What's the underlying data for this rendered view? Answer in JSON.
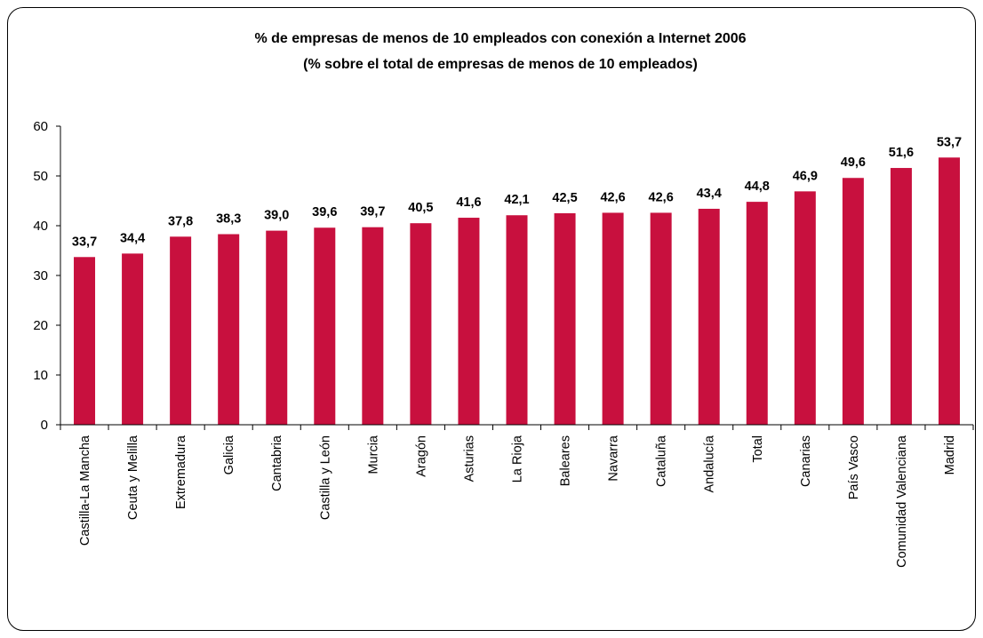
{
  "chart_data": {
    "type": "bar",
    "title": "% de empresas de menos de 10 empleados con conexión a Internet 2006",
    "subtitle": "(% sobre el total de empresas de menos de 10 empleados)",
    "categories": [
      "Castilla-La Mancha",
      "Ceuta y Melilla",
      "Extremadura",
      "Galicia",
      "Cantabria",
      "Castilla y León",
      "Murcia",
      "Aragón",
      "Asturias",
      "La Rioja",
      "Baleares",
      "Navarra",
      "Cataluña",
      "Andalucía",
      "Total",
      "Canarias",
      "País Vasco",
      "Comunidad Valenciana",
      "Madrid"
    ],
    "values": [
      33.7,
      34.4,
      37.8,
      38.3,
      39.0,
      39.6,
      39.7,
      40.5,
      41.6,
      42.1,
      42.5,
      42.6,
      42.6,
      43.4,
      44.8,
      46.9,
      49.6,
      51.6,
      53.7
    ],
    "data_labels": [
      "33,7",
      "34,4",
      "37,8",
      "38,3",
      "39,0",
      "39,6",
      "39,7",
      "40,5",
      "41,6",
      "42,1",
      "42,5",
      "42,6",
      "42,6",
      "43,4",
      "44,8",
      "46,9",
      "49,6",
      "51,6",
      "53,7"
    ],
    "yticks": [
      "0",
      "10",
      "20",
      "30",
      "40",
      "50",
      "60"
    ],
    "ylim": [
      0,
      60
    ],
    "grid": false,
    "legend": "none",
    "bar_color": "#C8103E"
  }
}
